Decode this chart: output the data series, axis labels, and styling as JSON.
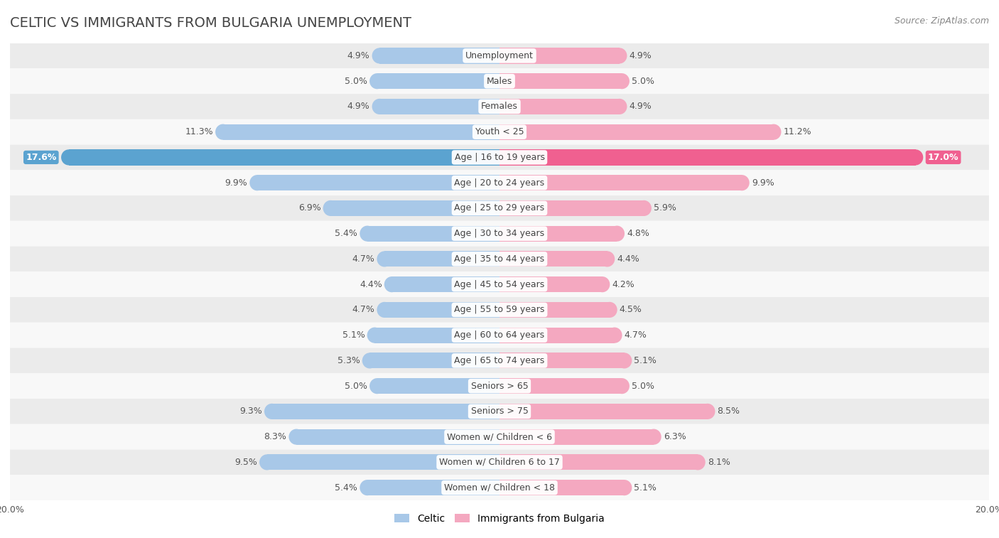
{
  "title": "CELTIC VS IMMIGRANTS FROM BULGARIA UNEMPLOYMENT",
  "source": "Source: ZipAtlas.com",
  "categories": [
    "Unemployment",
    "Males",
    "Females",
    "Youth < 25",
    "Age | 16 to 19 years",
    "Age | 20 to 24 years",
    "Age | 25 to 29 years",
    "Age | 30 to 34 years",
    "Age | 35 to 44 years",
    "Age | 45 to 54 years",
    "Age | 55 to 59 years",
    "Age | 60 to 64 years",
    "Age | 65 to 74 years",
    "Seniors > 65",
    "Seniors > 75",
    "Women w/ Children < 6",
    "Women w/ Children 6 to 17",
    "Women w/ Children < 18"
  ],
  "celtic_values": [
    4.9,
    5.0,
    4.9,
    11.3,
    17.6,
    9.9,
    6.9,
    5.4,
    4.7,
    4.4,
    4.7,
    5.1,
    5.3,
    5.0,
    9.3,
    8.3,
    9.5,
    5.4
  ],
  "bulgaria_values": [
    4.9,
    5.0,
    4.9,
    11.2,
    17.0,
    9.9,
    5.9,
    4.8,
    4.4,
    4.2,
    4.5,
    4.7,
    5.1,
    5.0,
    8.5,
    6.3,
    8.1,
    5.1
  ],
  "celtic_color": "#a8c8e8",
  "bulgaria_color": "#f4a8c0",
  "celtic_highlight_color": "#5ba3d0",
  "bulgaria_highlight_color": "#f06090",
  "highlight_row": 4,
  "axis_limit": 20.0,
  "bg_color": "#ffffff",
  "row_bg_light": "#ebebeb",
  "row_bg_white": "#f8f8f8",
  "legend_celtic": "Celtic",
  "legend_bulgaria": "Immigrants from Bulgaria",
  "title_fontsize": 14,
  "source_fontsize": 9,
  "label_fontsize": 9,
  "value_fontsize": 9,
  "legend_fontsize": 10,
  "axis_label_fontsize": 9,
  "bar_height": 0.62
}
